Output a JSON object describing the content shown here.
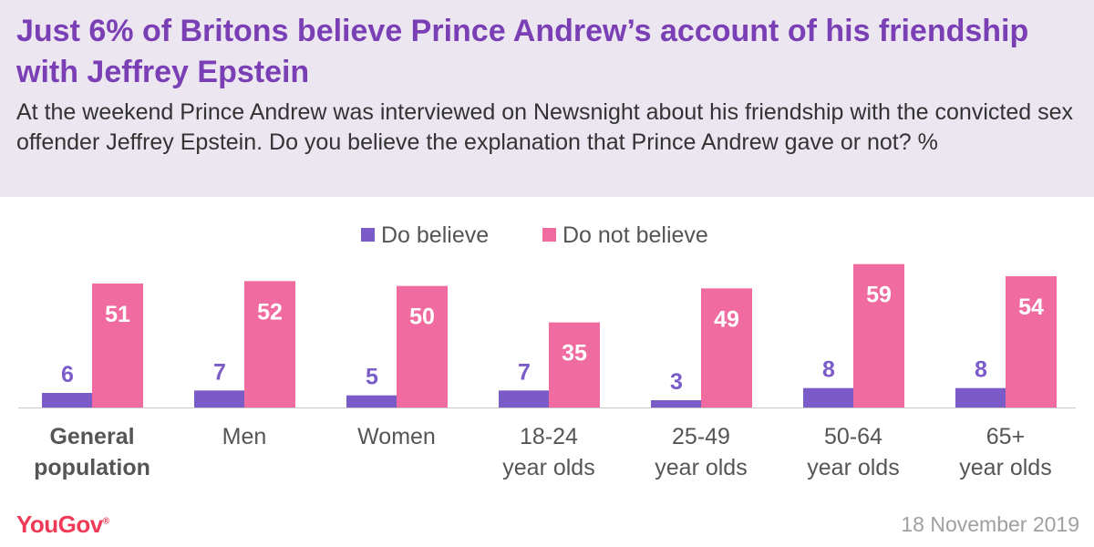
{
  "header": {
    "title": "Just 6% of Britons believe Prince Andrew’s account of his friendship with Jeffrey Epstein",
    "subtitle": "At the weekend Prince Andrew was interviewed on Newsnight about his friendship with the convicted sex offender Jeffrey Epstein.  Do you believe the explanation that Prince Andrew gave or not? %"
  },
  "footer": {
    "logo": "YouGov",
    "date": "18 November 2019"
  },
  "colors": {
    "do_believe": "#7b5bc8",
    "do_not_believe": "#f06b9f",
    "do_believe_label": "#7b5bc8",
    "do_not_believe_label": "#ffffff",
    "title": "#7b3fb5"
  },
  "chart_data": {
    "type": "bar",
    "categories": [
      [
        "General",
        "population"
      ],
      [
        "Men"
      ],
      [
        "Women"
      ],
      [
        "18-24",
        "year olds"
      ],
      [
        "25-49",
        "year olds"
      ],
      [
        "50-64",
        "year olds"
      ],
      [
        "65+",
        "year olds"
      ]
    ],
    "series": [
      {
        "name": "Do believe",
        "values": [
          6,
          7,
          5,
          7,
          3,
          8,
          8
        ]
      },
      {
        "name": "Do not believe",
        "values": [
          51,
          52,
          50,
          35,
          49,
          59,
          54
        ]
      }
    ],
    "ylim": [
      0,
      60
    ],
    "legend": "top-center",
    "grid": false,
    "bold_categories": [
      0
    ]
  }
}
